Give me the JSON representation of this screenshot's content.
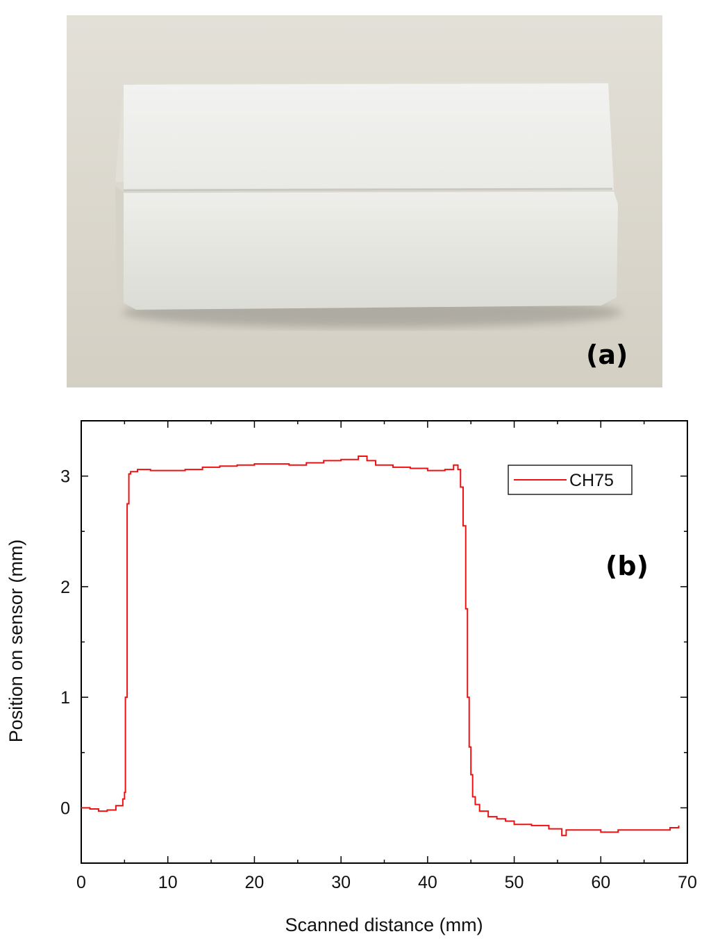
{
  "figure": {
    "panel_a": {
      "label": "(a)",
      "subject": "white-block-sample",
      "colors": {
        "background": "#ddd9ce",
        "block_top": "#eeeeec",
        "block_front": "#e7e7e3",
        "shadow": "#8f8d85"
      }
    },
    "panel_b": {
      "label": "(b)"
    }
  },
  "chart_data": {
    "type": "line",
    "title": "",
    "xlabel": "Scanned distance (mm)",
    "ylabel": "Position on sensor (mm)",
    "xlim": [
      0,
      70
    ],
    "ylim": [
      -0.5,
      3.5
    ],
    "xticks": [
      0,
      10,
      20,
      30,
      40,
      50,
      60,
      70
    ],
    "yticks": [
      0,
      1,
      2,
      3
    ],
    "x_tick_labels": [
      "0",
      "10",
      "20",
      "30",
      "40",
      "50",
      "60",
      "70"
    ],
    "y_tick_labels": [
      "0",
      "1",
      "2",
      "3"
    ],
    "grid": false,
    "legend_position": "top-right",
    "series": [
      {
        "name": "CH75",
        "color": "#ee1111",
        "x": [
          0,
          1,
          2,
          3,
          4,
          4.8,
          5.0,
          5.1,
          5.3,
          5.5,
          5.7,
          6.5,
          8,
          10,
          12,
          14,
          16,
          18,
          20,
          22,
          24,
          26,
          28,
          30,
          32,
          33,
          34,
          36,
          38,
          40,
          42,
          43,
          43.5,
          43.8,
          44.1,
          44.4,
          44.6,
          44.8,
          45.0,
          45.2,
          45.5,
          46,
          47,
          48,
          49,
          50,
          52,
          54,
          55.5,
          56,
          58,
          60,
          62,
          64,
          66,
          68,
          69
        ],
        "y": [
          0.0,
          -0.01,
          -0.03,
          -0.02,
          0.02,
          0.08,
          0.14,
          1.0,
          2.75,
          3.02,
          3.04,
          3.06,
          3.05,
          3.05,
          3.06,
          3.08,
          3.09,
          3.1,
          3.11,
          3.11,
          3.1,
          3.12,
          3.14,
          3.15,
          3.18,
          3.14,
          3.1,
          3.08,
          3.07,
          3.05,
          3.06,
          3.1,
          3.06,
          2.9,
          2.55,
          1.8,
          1.0,
          0.55,
          0.3,
          0.1,
          0.03,
          -0.03,
          -0.08,
          -0.1,
          -0.12,
          -0.15,
          -0.16,
          -0.19,
          -0.25,
          -0.2,
          -0.2,
          -0.22,
          -0.2,
          -0.2,
          -0.2,
          -0.18,
          -0.16
        ]
      }
    ]
  }
}
